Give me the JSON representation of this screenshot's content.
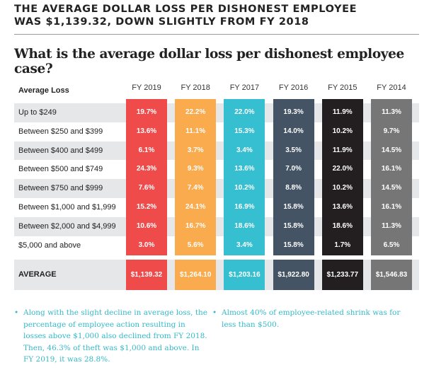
{
  "header": {
    "title_line1": "THE AVERAGE DOLLAR LOSS PER DISHONEST EMPLOYEE",
    "title_line2": "WAS $1,139.32, DOWN SLIGHTLY FROM FY 2018",
    "question": "What is the average dollar loss per dishonest employee case?"
  },
  "chart_data": {
    "type": "table",
    "title": "What is the average dollar loss per dishonest employee case?",
    "row_header": "Average Loss",
    "categories": [
      "Up to $249",
      "Between $250 and $399",
      "Between $400 and $499",
      "Between $500 and $749",
      "Between $750 and $999",
      "Between $1,000 and $1,999",
      "Between $2,000 and $4,999",
      "$5,000 and above"
    ],
    "average_label": "AVERAGE",
    "series": [
      {
        "name": "FY 2019",
        "color": "#ef4b4b",
        "values": [
          "19.7%",
          "13.6%",
          "6.1%",
          "24.3%",
          "7.6%",
          "15.2%",
          "10.6%",
          "3.0%"
        ],
        "average": "$1,139.32"
      },
      {
        "name": "FY 2018",
        "color": "#f9ab4d",
        "values": [
          "22.2%",
          "11.1%",
          "3.7%",
          "9.3%",
          "7.4%",
          "24.1%",
          "16.7%",
          "5.6%"
        ],
        "average": "$1,264.10"
      },
      {
        "name": "FY 2017",
        "color": "#36bfd1",
        "values": [
          "22.0%",
          "15.3%",
          "3.4%",
          "13.6%",
          "10.2%",
          "16.9%",
          "18.6%",
          "3.4%"
        ],
        "average": "$1,203.16"
      },
      {
        "name": "FY 2016",
        "color": "#445464",
        "values": [
          "19.3%",
          "14.0%",
          "3.5%",
          "7.0%",
          "8.8%",
          "15.8%",
          "15.8%",
          "15.8%"
        ],
        "average": "$1,922.80"
      },
      {
        "name": "FY 2015",
        "color": "#231f20",
        "values": [
          "11.9%",
          "10.2%",
          "11.9%",
          "22.0%",
          "10.2%",
          "13.6%",
          "18.6%",
          "1.7%"
        ],
        "average": "$1,233.77"
      },
      {
        "name": "FY 2014",
        "color": "#767676",
        "values": [
          "11.3%",
          "9.7%",
          "14.5%",
          "16.1%",
          "14.5%",
          "16.1%",
          "11.3%",
          "6.5%"
        ],
        "average": "$1,546.83"
      }
    ]
  },
  "notes": [
    "Along with the slight decline in average loss, the percentage of employee action resulting in losses above $1,000 also declined from FY 2018. Then, 46.3% of theft was $1,000 and above. In FY 2019, it was 28.8%.",
    "Almost 40% of employee-related shrink was for less than $500."
  ],
  "bullet_char": "•"
}
